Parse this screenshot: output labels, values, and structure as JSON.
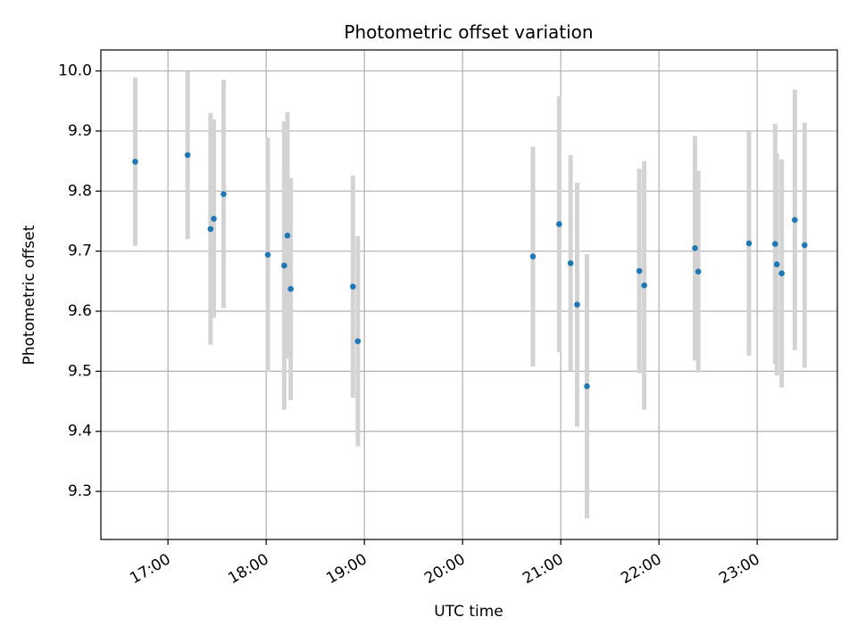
{
  "chart_data": {
    "type": "scatter",
    "title": "Photometric offset variation",
    "xlabel": "UTC time",
    "ylabel": "Photometric offset",
    "xlim": [
      "16:19",
      "23:49"
    ],
    "ylim": [
      9.22,
      10.035
    ],
    "x_ticks": [
      "17:00",
      "18:00",
      "19:00",
      "20:00",
      "21:00",
      "22:00",
      "23:00"
    ],
    "y_ticks": [
      "9.3",
      "9.4",
      "9.5",
      "9.6",
      "9.7",
      "9.8",
      "9.9",
      "10.0"
    ],
    "grid": true,
    "marker_color": "#1f77b4",
    "errorbar_color": "#d3d3d3",
    "points": [
      {
        "time": "16:40",
        "y": 9.849,
        "err": 0.14
      },
      {
        "time": "17:12",
        "y": 9.86,
        "err": 0.14
      },
      {
        "time": "17:26",
        "y": 9.737,
        "err": 0.193
      },
      {
        "time": "17:28",
        "y": 9.754,
        "err": 0.165
      },
      {
        "time": "17:34",
        "y": 9.795,
        "err": 0.19
      },
      {
        "time": "18:01",
        "y": 9.694,
        "err": 0.195
      },
      {
        "time": "18:11",
        "y": 9.676,
        "err": 0.24
      },
      {
        "time": "18:13",
        "y": 9.726,
        "err": 0.205
      },
      {
        "time": "18:15",
        "y": 9.637,
        "err": 0.185
      },
      {
        "time": "18:53",
        "y": 9.641,
        "err": 0.185
      },
      {
        "time": "18:56",
        "y": 9.55,
        "err": 0.175
      },
      {
        "time": "20:43",
        "y": 9.691,
        "err": 0.183
      },
      {
        "time": "20:59",
        "y": 9.745,
        "err": 0.213
      },
      {
        "time": "21:06",
        "y": 9.68,
        "err": 0.18
      },
      {
        "time": "21:10",
        "y": 9.611,
        "err": 0.203
      },
      {
        "time": "21:16",
        "y": 9.475,
        "err": 0.22
      },
      {
        "time": "21:48",
        "y": 9.667,
        "err": 0.17
      },
      {
        "time": "21:51",
        "y": 9.643,
        "err": 0.207
      },
      {
        "time": "22:22",
        "y": 9.705,
        "err": 0.187
      },
      {
        "time": "22:24",
        "y": 9.666,
        "err": 0.168
      },
      {
        "time": "22:55",
        "y": 9.713,
        "err": 0.187
      },
      {
        "time": "23:11",
        "y": 9.712,
        "err": 0.2
      },
      {
        "time": "23:12",
        "y": 9.678,
        "err": 0.185
      },
      {
        "time": "23:15",
        "y": 9.663,
        "err": 0.19
      },
      {
        "time": "23:23",
        "y": 9.752,
        "err": 0.217
      },
      {
        "time": "23:29",
        "y": 9.71,
        "err": 0.204
      }
    ]
  }
}
